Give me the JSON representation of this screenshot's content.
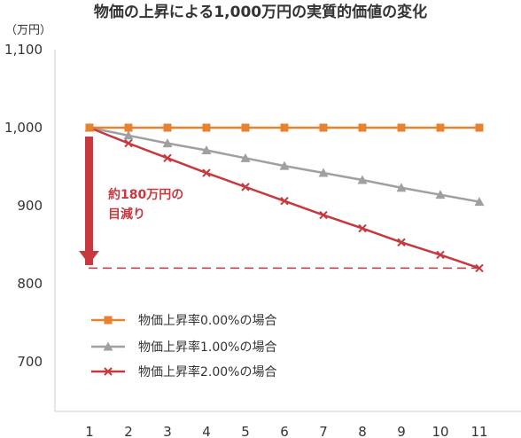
{
  "chart_data": {
    "type": "line",
    "title": "物価の上昇による1,000万円の実質的価値の変化",
    "ylabel": "（万円）",
    "xlabel": "",
    "x": [
      1,
      2,
      3,
      4,
      5,
      6,
      7,
      8,
      9,
      10,
      11
    ],
    "ylim": [
      650,
      1100
    ],
    "yticks": [
      700,
      800,
      900,
      1000,
      1100
    ],
    "ytick_labels": [
      "700",
      "800",
      "900",
      "1,000",
      "1,100"
    ],
    "series": [
      {
        "name": "物価上昇率0.00%の場合",
        "color": "#e8822e",
        "marker": "square",
        "values": [
          1000,
          1000,
          1000,
          1000,
          1000,
          1000,
          1000,
          1000,
          1000,
          1000,
          1000
        ]
      },
      {
        "name": "物価上昇率1.00%の場合",
        "color": "#a0a0a0",
        "marker": "triangle",
        "values": [
          1000,
          990,
          980,
          971,
          961,
          951,
          942,
          933,
          923,
          914,
          905
        ]
      },
      {
        "name": "物価上昇率2.00%の場合",
        "color": "#c8383f",
        "marker": "x",
        "values": [
          1000,
          980,
          961,
          942,
          924,
          906,
          888,
          871,
          853,
          837,
          820
        ]
      }
    ],
    "annotation": {
      "line1": "約180万円の",
      "line2": "目減り",
      "color": "#c8383f"
    },
    "grid": false,
    "legend_position": "lower-left"
  }
}
